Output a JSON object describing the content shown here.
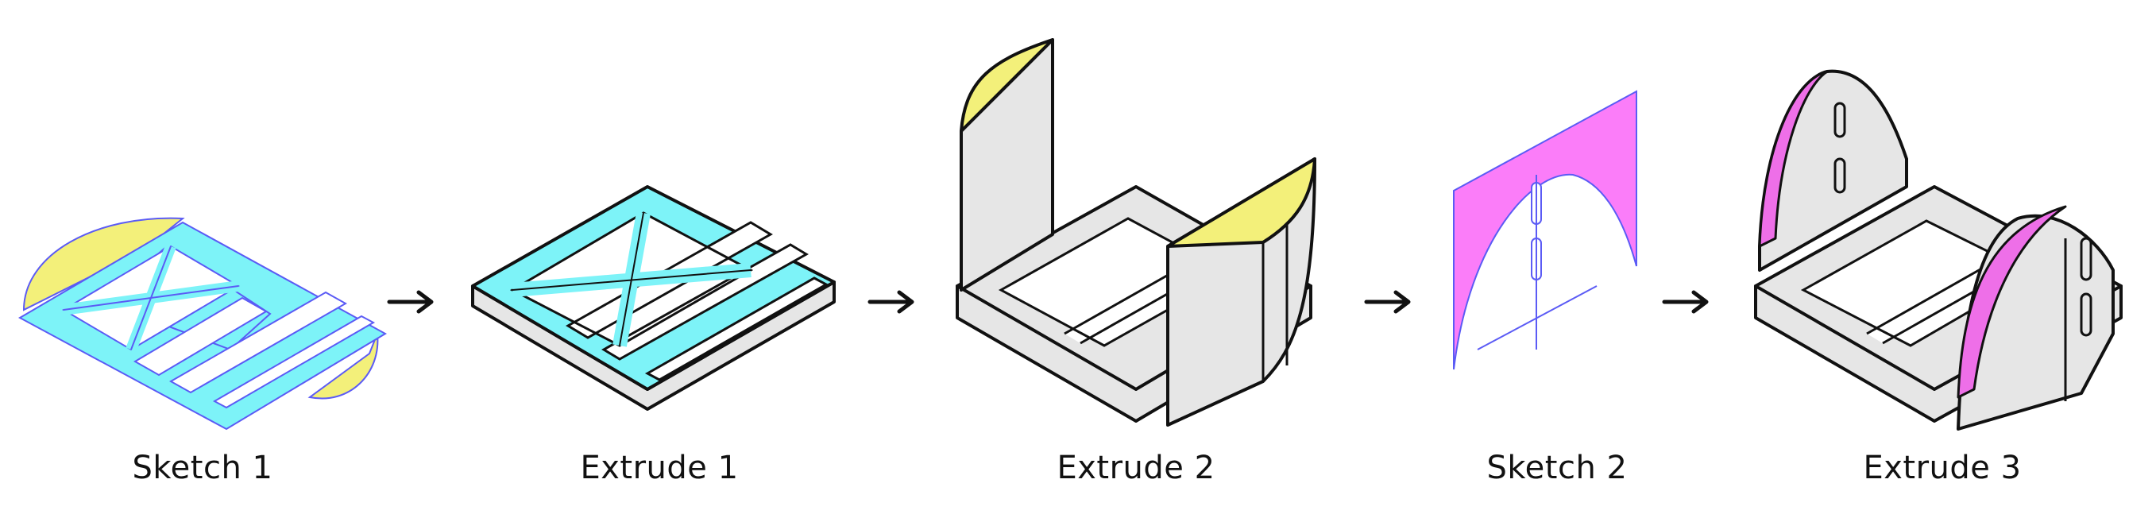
{
  "steps": [
    {
      "label": "Sketch 1"
    },
    {
      "label": "Extrude 1"
    },
    {
      "label": "Extrude 2"
    },
    {
      "label": "Sketch 2"
    },
    {
      "label": "Extrude 3"
    }
  ],
  "colors": {
    "sketch_profile": "#7df3f8",
    "extruded_face": "#7df3f8",
    "sketch_fill_yellow": "#f3f07a",
    "extrude2_caps": "#f3f07a",
    "sketch2_fill": "#fb7df9",
    "extrude3_caps": "#ee6fe8",
    "body_gray": "#e6e6e6",
    "outline": "#111111",
    "sketch_line": "#5b5bf5"
  }
}
